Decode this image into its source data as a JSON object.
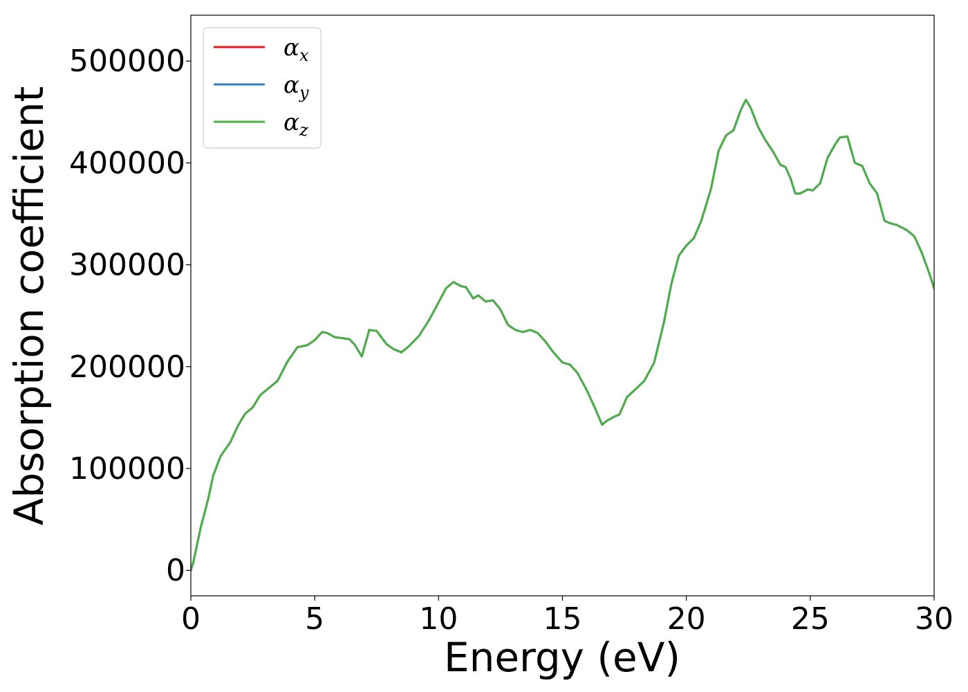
{
  "chart_data": {
    "type": "line",
    "title": "",
    "xlabel": "Energy (eV)",
    "ylabel": "Absorption coefficient",
    "xlim": [
      0,
      30
    ],
    "ylim": [
      -25000,
      545000
    ],
    "xticks": [
      0,
      5,
      10,
      15,
      20,
      25,
      30
    ],
    "xtick_labels": [
      "0",
      "5",
      "10",
      "15",
      "20",
      "25",
      "30"
    ],
    "yticks": [
      0,
      100000,
      200000,
      300000,
      400000,
      500000
    ],
    "ytick_labels": [
      "0",
      "100000",
      "200000",
      "300000",
      "400000",
      "500000"
    ],
    "grid": false,
    "legend": {
      "placement": "top-left"
    },
    "x": [
      0,
      0.1,
      0.4,
      0.7,
      0.9,
      1.2,
      1.6,
      1.9,
      2.2,
      2.5,
      2.8,
      3.2,
      3.5,
      3.9,
      4.3,
      4.7,
      5.0,
      5.3,
      5.5,
      5.8,
      6.1,
      6.4,
      6.6,
      6.9,
      7.2,
      7.5,
      7.9,
      8.2,
      8.5,
      8.8,
      9.2,
      9.6,
      10.0,
      10.3,
      10.6,
      10.9,
      11.1,
      11.4,
      11.6,
      11.9,
      12.2,
      12.5,
      12.8,
      13.1,
      13.4,
      13.7,
      14.0,
      14.3,
      14.6,
      15.0,
      15.3,
      15.6,
      16.0,
      16.3,
      16.6,
      16.8,
      17.1,
      17.3,
      17.6,
      18.0,
      18.3,
      18.7,
      19.1,
      19.4,
      19.7,
      20.0,
      20.3,
      20.6,
      21.0,
      21.3,
      21.6,
      21.9,
      22.2,
      22.4,
      22.6,
      22.9,
      23.2,
      23.5,
      23.8,
      24.0,
      24.2,
      24.4,
      24.6,
      24.9,
      25.1,
      25.4,
      25.7,
      26.0,
      26.2,
      26.5,
      26.8,
      27.1,
      27.4,
      27.7,
      28.0,
      28.2,
      28.5,
      28.9,
      29.2,
      29.5,
      29.8,
      30.0
    ],
    "series": [
      {
        "name": "α_x",
        "label_base": "α",
        "label_sub": "x",
        "color": "#e41a1c",
        "values": [
          0,
          8000,
          42000,
          70000,
          93000,
          112000,
          126000,
          142000,
          154000,
          160000,
          172000,
          180000,
          186000,
          205000,
          219000,
          221000,
          226000,
          234000,
          233000,
          229000,
          228000,
          227000,
          222000,
          210000,
          236000,
          235000,
          222000,
          217000,
          214000,
          220000,
          230000,
          245000,
          263000,
          277000,
          283000,
          279000,
          278000,
          267000,
          270000,
          264000,
          265000,
          256000,
          241000,
          236000,
          234000,
          236000,
          233000,
          225000,
          215000,
          204000,
          202000,
          194000,
          176000,
          160000,
          143000,
          147000,
          151000,
          153000,
          170000,
          179000,
          186000,
          204000,
          244000,
          282000,
          309000,
          319000,
          326000,
          343000,
          375000,
          412000,
          427000,
          432000,
          452000,
          462000,
          454000,
          435000,
          422000,
          411000,
          398000,
          396000,
          385000,
          370000,
          370000,
          374000,
          373000,
          380000,
          405000,
          418000,
          425000,
          426000,
          400000,
          397000,
          380000,
          370000,
          343000,
          341000,
          339000,
          334000,
          328000,
          312000,
          292000,
          277000
        ]
      },
      {
        "name": "α_y",
        "label_base": "α",
        "label_sub": "y",
        "color": "#377eb8",
        "values": [
          0,
          8000,
          42000,
          70000,
          93000,
          112000,
          126000,
          142000,
          154000,
          160000,
          172000,
          180000,
          186000,
          205000,
          219000,
          221000,
          226000,
          234000,
          233000,
          229000,
          228000,
          227000,
          222000,
          210000,
          236000,
          235000,
          222000,
          217000,
          214000,
          220000,
          230000,
          245000,
          263000,
          277000,
          283000,
          279000,
          278000,
          267000,
          270000,
          264000,
          265000,
          256000,
          241000,
          236000,
          234000,
          236000,
          233000,
          225000,
          215000,
          204000,
          202000,
          194000,
          176000,
          160000,
          143000,
          147000,
          151000,
          153000,
          170000,
          179000,
          186000,
          204000,
          244000,
          282000,
          309000,
          319000,
          326000,
          343000,
          375000,
          412000,
          427000,
          432000,
          452000,
          462000,
          454000,
          435000,
          422000,
          411000,
          398000,
          396000,
          385000,
          370000,
          370000,
          374000,
          373000,
          380000,
          405000,
          418000,
          425000,
          426000,
          400000,
          397000,
          380000,
          370000,
          343000,
          341000,
          339000,
          334000,
          328000,
          312000,
          292000,
          277000
        ]
      },
      {
        "name": "α_z",
        "label_base": "α",
        "label_sub": "z",
        "color": "#4daf4a",
        "values": [
          0,
          8000,
          42000,
          70000,
          93000,
          112000,
          126000,
          142000,
          154000,
          160000,
          172000,
          180000,
          186000,
          205000,
          219000,
          221000,
          226000,
          234000,
          233000,
          229000,
          228000,
          227000,
          222000,
          210000,
          236000,
          235000,
          222000,
          217000,
          214000,
          220000,
          230000,
          245000,
          263000,
          277000,
          283000,
          279000,
          278000,
          267000,
          270000,
          264000,
          265000,
          256000,
          241000,
          236000,
          234000,
          236000,
          233000,
          225000,
          215000,
          204000,
          202000,
          194000,
          176000,
          160000,
          143000,
          147000,
          151000,
          153000,
          170000,
          179000,
          186000,
          204000,
          244000,
          282000,
          309000,
          319000,
          326000,
          343000,
          375000,
          412000,
          427000,
          432000,
          452000,
          462000,
          454000,
          435000,
          422000,
          411000,
          398000,
          396000,
          385000,
          370000,
          370000,
          374000,
          373000,
          380000,
          405000,
          418000,
          425000,
          426000,
          400000,
          397000,
          380000,
          370000,
          343000,
          341000,
          339000,
          334000,
          328000,
          312000,
          292000,
          277000
        ]
      }
    ]
  }
}
